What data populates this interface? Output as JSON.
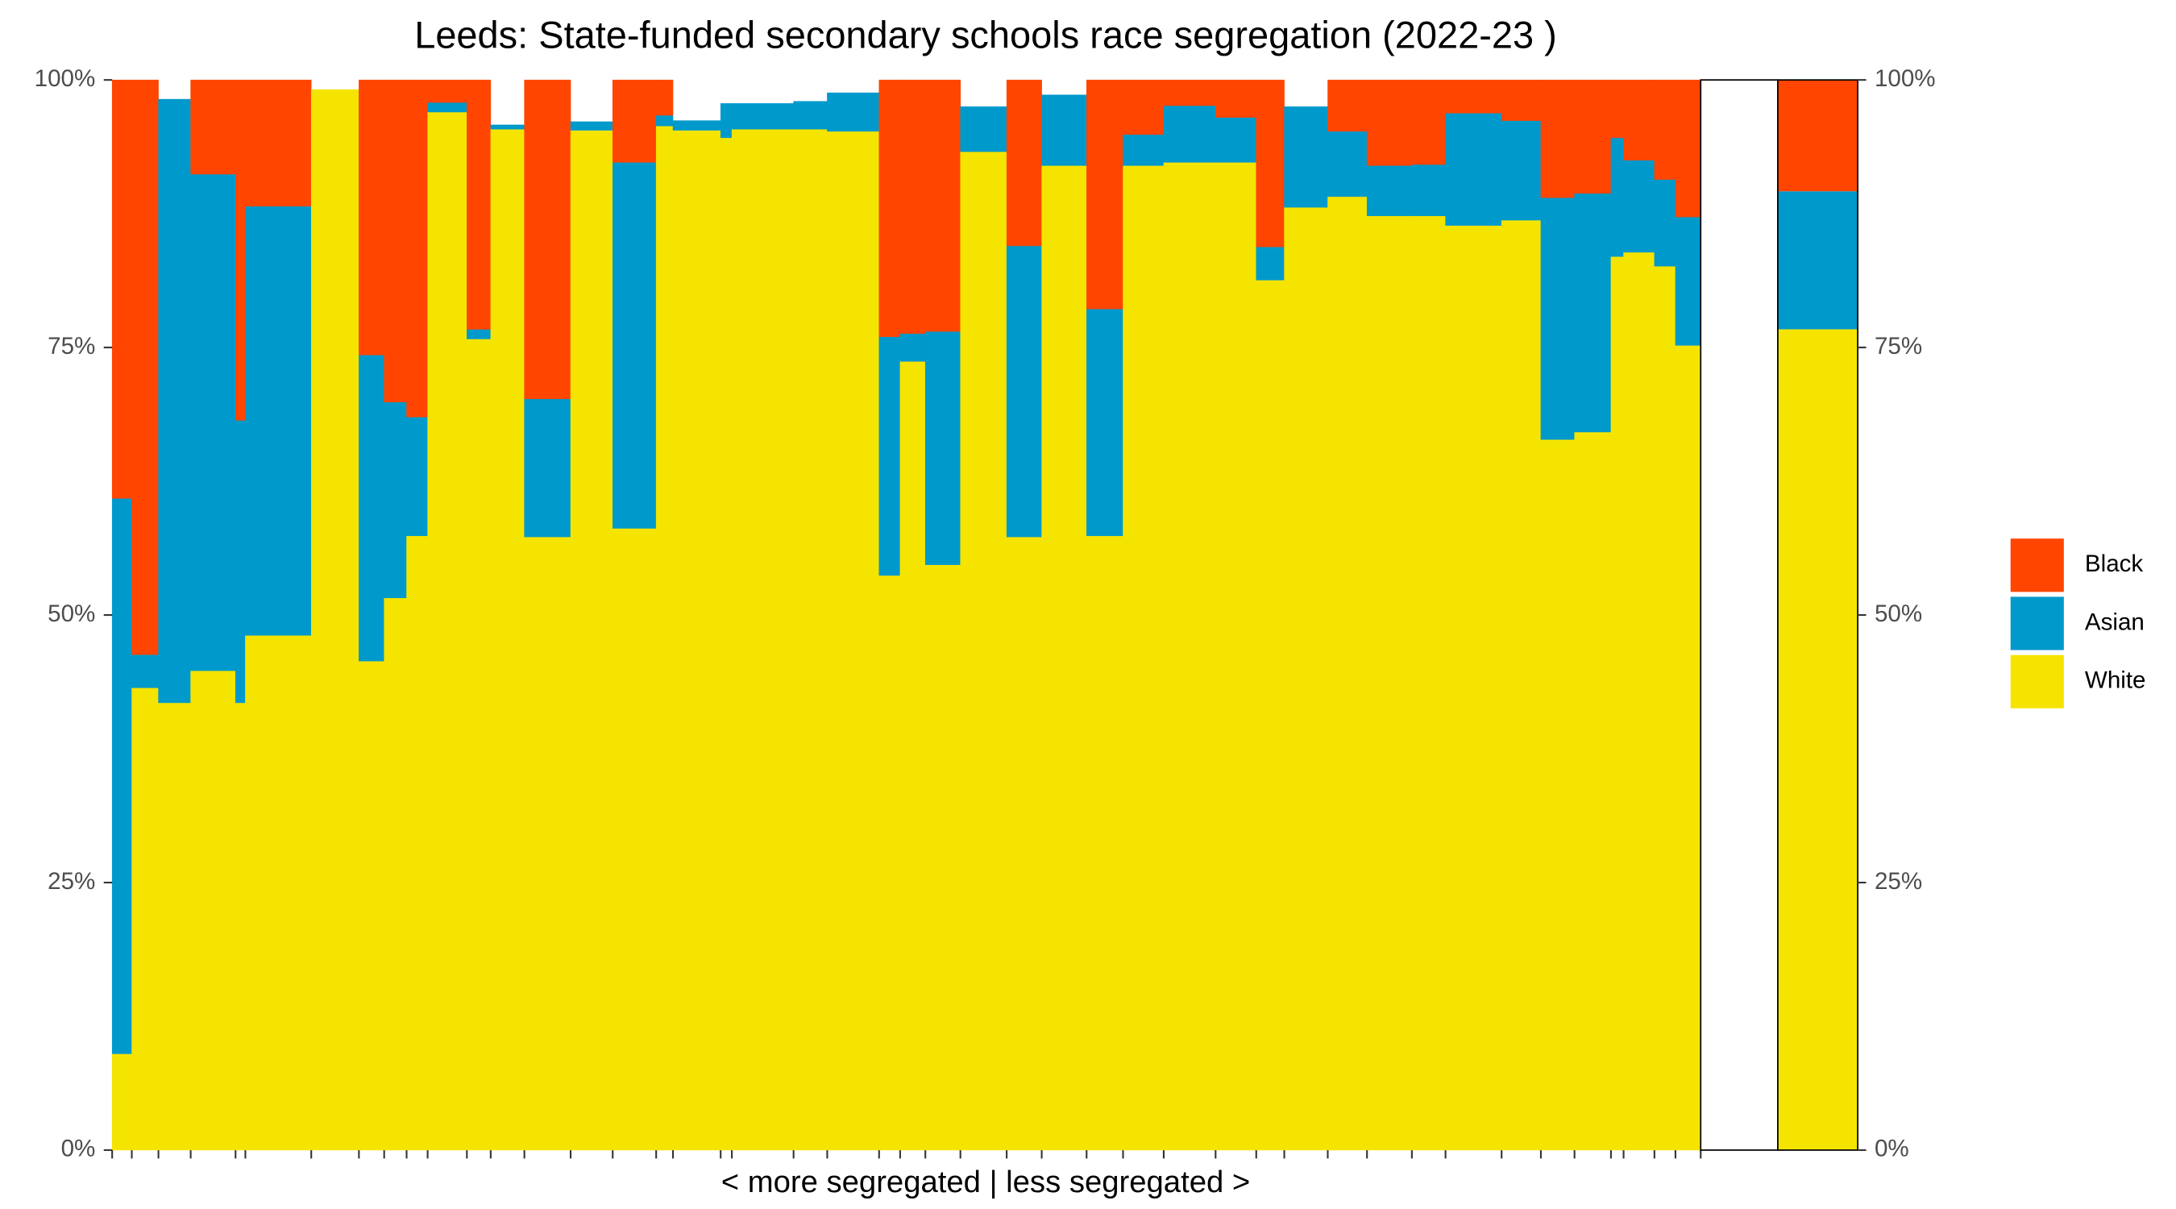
{
  "chart_data": {
    "type": "mosaic",
    "title": "Leeds: State-funded secondary schools race segregation (2022-23 )",
    "x_label": "< more segregated | less segregated >",
    "widths": [
      14,
      19,
      23,
      32,
      7,
      47,
      34,
      18,
      16,
      15,
      28,
      17,
      24,
      33,
      30,
      31,
      12,
      34,
      8,
      44,
      24,
      37,
      15,
      18,
      25,
      33,
      25,
      32,
      26,
      29,
      37,
      29,
      20,
      31,
      28,
      32,
      24,
      40,
      28,
      24,
      26,
      9,
      22,
      15,
      18
    ],
    "series": [
      {
        "name": "White",
        "color": "#f5e400",
        "overall": 76.7,
        "values": [
          9.0,
          43.2,
          41.8,
          44.8,
          41.8,
          48.1,
          99.1,
          45.7,
          51.6,
          57.4,
          97.0,
          75.8,
          95.4,
          57.3,
          95.3,
          58.1,
          95.7,
          95.3,
          94.6,
          95.4,
          95.4,
          95.2,
          53.7,
          73.7,
          54.7,
          93.3,
          57.3,
          92.0,
          57.4,
          92.0,
          92.3,
          92.3,
          81.3,
          88.1,
          89.1,
          87.3,
          87.3,
          86.4,
          86.9,
          66.4,
          67.1,
          83.5,
          83.9,
          82.6,
          75.2
        ]
      },
      {
        "name": "Asian",
        "color": "#0099cc",
        "overall": 12.9,
        "values": [
          51.9,
          3.1,
          56.4,
          46.4,
          26.4,
          40.1,
          0,
          28.6,
          18.3,
          11.1,
          0.9,
          0.9,
          0.4,
          12.9,
          0.8,
          34.2,
          1.0,
          0.9,
          3.2,
          2.4,
          2.6,
          3.6,
          22.3,
          2.6,
          21.8,
          4.2,
          27.2,
          6.6,
          21.2,
          2.9,
          5.3,
          4.2,
          3.1,
          9.4,
          6.1,
          4.7,
          4.8,
          10.5,
          9.3,
          22.6,
          22.3,
          11.1,
          8.6,
          8.1,
          12.0
        ]
      },
      {
        "name": "Black",
        "color": "#ff4500",
        "overall": 10.4,
        "values": [
          39.1,
          53.7,
          0,
          8.8,
          31.8,
          11.8,
          0,
          25.7,
          30.1,
          31.5,
          2.1,
          23.3,
          0,
          29.8,
          0,
          7.7,
          3.3,
          0,
          0,
          0,
          0,
          0,
          24.0,
          23.7,
          23.5,
          0,
          15.5,
          0,
          21.4,
          5.1,
          2.4,
          3.5,
          15.6,
          0,
          4.8,
          8.0,
          7.9,
          3.1,
          3.8,
          11.0,
          10.6,
          5.4,
          7.5,
          9.3,
          12.8
        ]
      }
    ],
    "ylim": [
      0,
      100
    ],
    "yticks": [
      {
        "value": 0,
        "label": "0%"
      },
      {
        "value": 25,
        "label": "25%"
      },
      {
        "value": 50,
        "label": "50%"
      },
      {
        "value": 75,
        "label": "75%"
      },
      {
        "value": 100,
        "label": "100%"
      }
    ],
    "legend": "right"
  }
}
